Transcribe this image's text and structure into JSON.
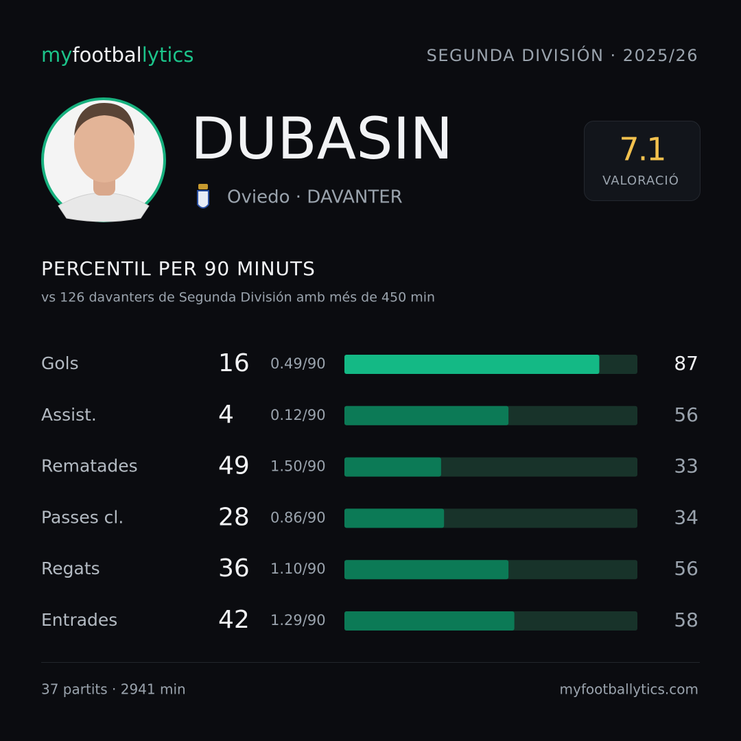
{
  "brand": {
    "part1": "my",
    "part2": "footbal",
    "part3": "lytics"
  },
  "competition": "SEGUNDA DIVISIÓN · 2025/26",
  "player": {
    "name": "DUBASIN",
    "team": "Oviedo · DAVANTER"
  },
  "rating": {
    "value": 7.1,
    "label": "VALORACIÓ"
  },
  "section": {
    "title": "PERCENTIL PER 90 MINUTS",
    "subtitle": "vs 126 davanters de Segunda División amb més de 450 min"
  },
  "chart_data": {
    "type": "bar",
    "categories": [
      "Gols",
      "Assist.",
      "Rematades",
      "Passes cl.",
      "Regats",
      "Entrades"
    ],
    "totals": [
      16,
      4,
      49,
      28,
      36,
      42
    ],
    "per90": [
      "0.49/90",
      "0.12/90",
      "1.50/90",
      "0.86/90",
      "1.10/90",
      "1.29/90"
    ],
    "values": [
      87,
      56,
      33,
      34,
      56,
      58
    ],
    "xlim": [
      0,
      100
    ],
    "colors": [
      "#14b985",
      "#0c7a56",
      "#0c7a56",
      "#0c7a56",
      "#0c7a56",
      "#0c7a56"
    ],
    "track_color": "#18332a"
  },
  "footer": {
    "left": "37 partits · 2941 min",
    "right": "myfootballytics.com"
  }
}
